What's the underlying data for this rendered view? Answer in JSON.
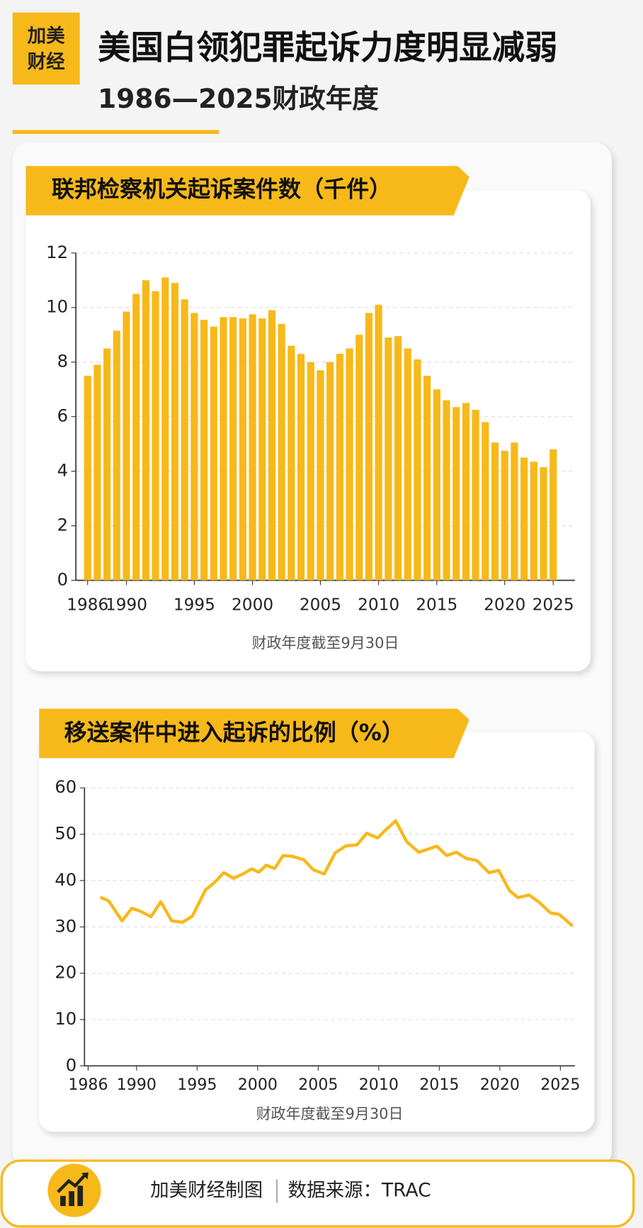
{
  "header": {
    "logo": [
      "加美",
      "财经"
    ],
    "title": "美国白领犯罪起诉力度明显减弱",
    "subtitle": "1986—2025财政年度"
  },
  "chart_data": [
    {
      "type": "bar",
      "title": "联邦检察机关起诉案件数（千件）",
      "x_label": "财政年度截至9月30日",
      "color": "#f7b91a",
      "grid": true,
      "categories": [
        "1986",
        null,
        null,
        null,
        "1990",
        null,
        null,
        null,
        null,
        null,
        null,
        "1995",
        null,
        null,
        null,
        null,
        null,
        "2000",
        null,
        null,
        null,
        null,
        null,
        null,
        "2005",
        null,
        null,
        null,
        null,
        null,
        "2010",
        null,
        null,
        null,
        null,
        null,
        "2015",
        null,
        null,
        null,
        null,
        null,
        null,
        "2020",
        null,
        null,
        null,
        null,
        "2025"
      ],
      "values": [
        7.5,
        7.9,
        8.5,
        9.15,
        9.85,
        10.5,
        11.0,
        10.6,
        11.1,
        10.9,
        10.3,
        9.8,
        9.55,
        9.3,
        9.65,
        9.65,
        9.6,
        9.75,
        9.6,
        9.9,
        9.4,
        8.6,
        8.3,
        8.0,
        7.7,
        8.0,
        8.3,
        8.5,
        9.0,
        9.8,
        10.1,
        8.9,
        8.95,
        8.5,
        8.1,
        7.5,
        7.0,
        6.6,
        6.35,
        6.5,
        6.25,
        5.8,
        5.05,
        4.75,
        5.05,
        4.5,
        4.35,
        4.15,
        4.8
      ],
      "ylim": [
        0,
        12
      ],
      "yticks": [
        0,
        2,
        4,
        6,
        8,
        10,
        12
      ]
    },
    {
      "type": "line",
      "title": "移送案件中进入起诉的比例（%）",
      "x_label": "财政年度截至9月30日",
      "color": "#f7b91a",
      "grid": true,
      "x": [
        1987.0,
        1987.7,
        1988.8,
        1989.6,
        1990.3,
        1991.2,
        1992.0,
        1992.9,
        1993.8,
        1994.6,
        1995.7,
        1996.4,
        1997.2,
        1998.0,
        1998.7,
        1999.5,
        2000.1,
        2000.7,
        2001.4,
        2002.1,
        2002.9,
        2003.8,
        2004.6,
        2005.5,
        2006.4,
        2007.3,
        2008.2,
        2009.0,
        2009.9,
        2010.6,
        2011.4,
        2012.3,
        2013.3,
        2014.8,
        2015.6,
        2016.4,
        2017.2,
        2018.1,
        2019.1,
        2019.9,
        2020.8,
        2021.5,
        2022.4,
        2023.2,
        2024.2,
        2024.9,
        2026.0
      ],
      "values": [
        36.4,
        35.6,
        31.3,
        34,
        33.4,
        32.2,
        35.4,
        31.3,
        31,
        32.3,
        38,
        39.5,
        41.7,
        40.5,
        41.3,
        42.5,
        41.8,
        43.3,
        42.6,
        45.4,
        45.2,
        44.5,
        42.3,
        41.4,
        46,
        47.5,
        47.7,
        50.2,
        49.2,
        51,
        52.9,
        48.4,
        46.1,
        47.4,
        45.4,
        46.1,
        44.8,
        44.3,
        41.7,
        42.2,
        37.8,
        36.3,
        36.9,
        35.4,
        33,
        32.7,
        30.2
      ],
      "xlim": [
        1985.7,
        2026.2
      ],
      "xticks": [
        1986,
        1990,
        1995,
        2000,
        2005,
        2010,
        2015,
        2020,
        2025
      ],
      "ylim": [
        0,
        60
      ],
      "yticks": [
        0,
        10,
        20,
        30,
        40,
        50,
        60
      ]
    }
  ],
  "footer": {
    "credit": "加美财经制图",
    "source": "数据来源：TRAC"
  }
}
